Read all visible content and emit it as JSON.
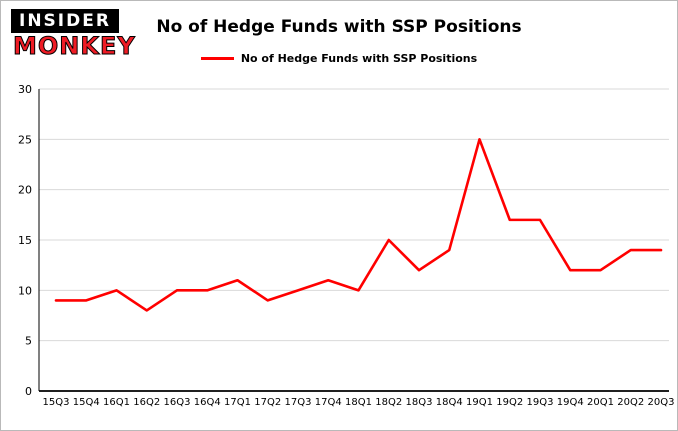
{
  "logo": {
    "line1": "INSIDER",
    "line2": "MONKEY"
  },
  "chart_data": {
    "type": "line",
    "title": "No of Hedge Funds with SSP Positions",
    "xlabel": "",
    "ylabel": "",
    "ylim": [
      0,
      30
    ],
    "yticks": [
      0,
      5,
      10,
      15,
      20,
      25,
      30
    ],
    "grid": true,
    "legend_position": "top",
    "line_color": "#ff0000",
    "grid_color": "#d9d9d9",
    "axis_color": "#000000",
    "categories": [
      "15Q3",
      "15Q4",
      "16Q1",
      "16Q2",
      "16Q3",
      "16Q4",
      "17Q1",
      "17Q2",
      "17Q3",
      "17Q4",
      "18Q1",
      "18Q2",
      "18Q3",
      "18Q4",
      "19Q1",
      "19Q2",
      "19Q3",
      "19Q4",
      "20Q1",
      "20Q2",
      "20Q3"
    ],
    "series": [
      {
        "name": "No of Hedge Funds with SSP Positions",
        "values": [
          9,
          9,
          10,
          8,
          10,
          10,
          11,
          9,
          10,
          11,
          10,
          15,
          12,
          14,
          25,
          17,
          17,
          12,
          12,
          14,
          14
        ]
      }
    ]
  }
}
